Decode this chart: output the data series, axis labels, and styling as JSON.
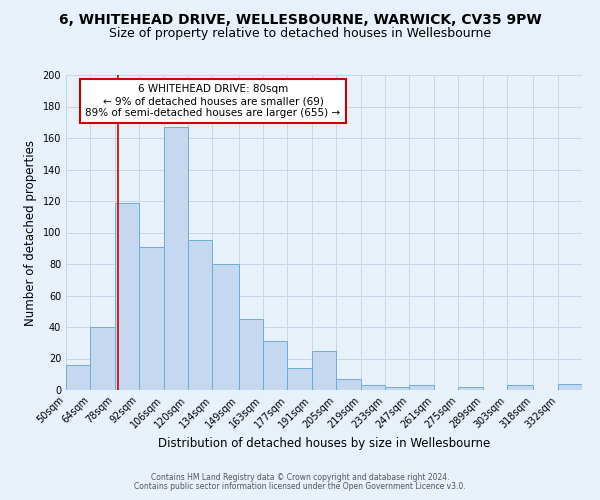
{
  "title": "6, WHITEHEAD DRIVE, WELLESBOURNE, WARWICK, CV35 9PW",
  "subtitle": "Size of property relative to detached houses in Wellesbourne",
  "xlabel": "Distribution of detached houses by size in Wellesbourne",
  "ylabel": "Number of detached properties",
  "footer_line1": "Contains HM Land Registry data © Crown copyright and database right 2024.",
  "footer_line2": "Contains public sector information licensed under the Open Government Licence v3.0.",
  "bin_labels": [
    "50sqm",
    "64sqm",
    "78sqm",
    "92sqm",
    "106sqm",
    "120sqm",
    "134sqm",
    "149sqm",
    "163sqm",
    "177sqm",
    "191sqm",
    "205sqm",
    "219sqm",
    "233sqm",
    "247sqm",
    "261sqm",
    "275sqm",
    "289sqm",
    "303sqm",
    "318sqm",
    "332sqm"
  ],
  "bin_edges": [
    50,
    64,
    78,
    92,
    106,
    120,
    134,
    149,
    163,
    177,
    191,
    205,
    219,
    233,
    247,
    261,
    275,
    289,
    303,
    318,
    332,
    346
  ],
  "bar_heights": [
    16,
    40,
    119,
    91,
    167,
    95,
    80,
    45,
    31,
    14,
    25,
    7,
    3,
    2,
    3,
    0,
    2,
    0,
    3,
    0,
    4
  ],
  "bar_color": "#c5d8f0",
  "bar_edge_color": "#6baed6",
  "red_line_x": 80,
  "annotation_title": "6 WHITEHEAD DRIVE: 80sqm",
  "annotation_line2": "← 9% of detached houses are smaller (69)",
  "annotation_line3": "89% of semi-detached houses are larger (655) →",
  "annotation_box_color": "#ffffff",
  "annotation_box_edge_color": "#cc0000",
  "red_line_color": "#cc0000",
  "ylim": [
    0,
    200
  ],
  "yticks": [
    0,
    20,
    40,
    60,
    80,
    100,
    120,
    140,
    160,
    180,
    200
  ],
  "grid_color": "#c8d4e8",
  "background_color": "#e8f0fa",
  "title_fontsize": 10,
  "subtitle_fontsize": 9,
  "axis_label_fontsize": 8.5,
  "tick_fontsize": 7
}
